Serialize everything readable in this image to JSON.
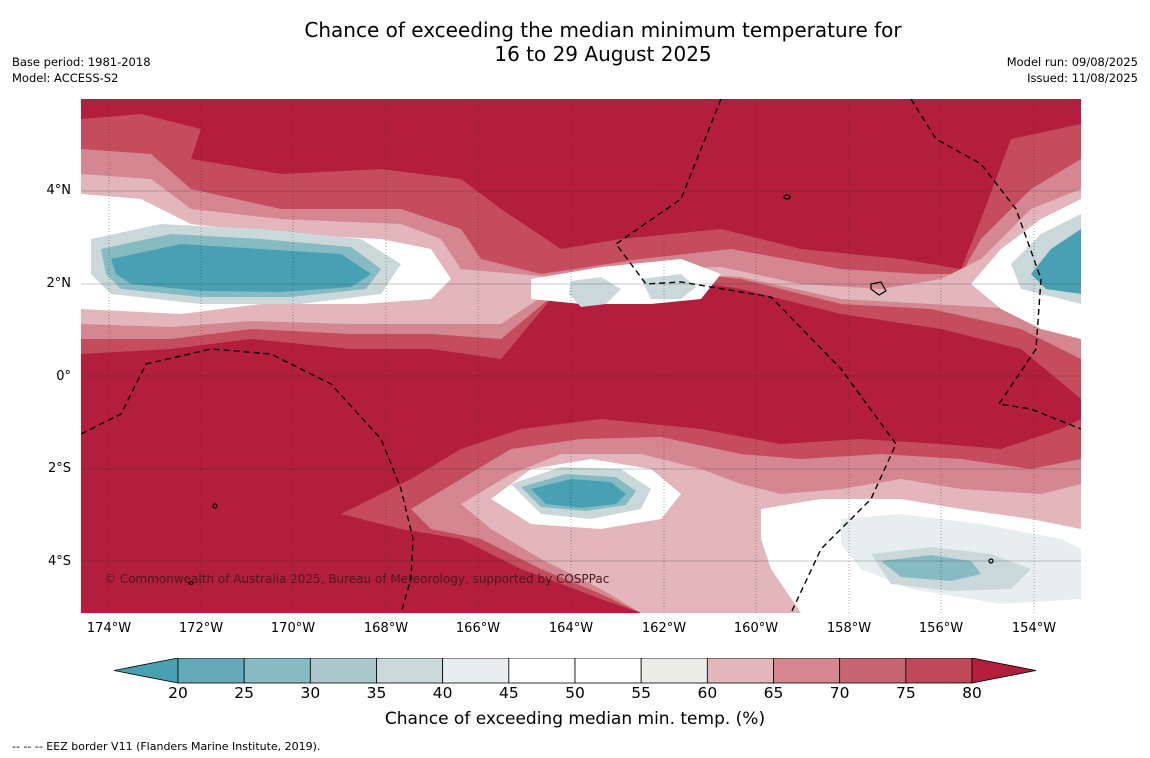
{
  "header": {
    "title_line1": "Chance of exceeding the median minimum temperature for",
    "title_line2": "16 to 29 August 2025",
    "base_period": "Base period: 1981-2018",
    "model": "Model: ACCESS-S2",
    "model_run": "Model run: 09/08/2025",
    "issued": "Issued: 11/08/2025"
  },
  "map": {
    "lat_labels": [
      "4°N",
      "2°N",
      "0°",
      "2°S",
      "4°S"
    ],
    "lon_labels": [
      "174°W",
      "172°W",
      "170°W",
      "168°W",
      "166°W",
      "164°W",
      "162°W",
      "160°W",
      "158°W",
      "156°W",
      "154°W"
    ],
    "copyright": "© Commonwealth of Australia 2025, Bureau of Meteorology, supported by COSPPac",
    "colors": {
      "very_high": "#b21e3b",
      "high": "#c44c5c",
      "mid_high": "#d48790",
      "slightly_high": "#e2b6bb",
      "neutral": "#ffffff",
      "slightly_low": "#e8eef0",
      "mid_low": "#cbd8da",
      "low": "#86bbc4",
      "very_low": "#47a1b3"
    }
  },
  "colorbar": {
    "ticks": [
      "20",
      "25",
      "30",
      "35",
      "40",
      "45",
      "50",
      "55",
      "60",
      "65",
      "70",
      "75",
      "80"
    ],
    "segment_colors": [
      "#65a9b8",
      "#86bbc4",
      "#abc7cc",
      "#cbd8da",
      "#e8eef0",
      "#ffffff",
      "#ffffff",
      "#ececea",
      "#e2b6bb",
      "#d48790",
      "#c56670",
      "#bf4957"
    ],
    "low_arrow_color": "#47a1b3",
    "high_arrow_color": "#b21e3b",
    "title": "Chance of exceeding median min. temp. (%)"
  },
  "footer": {
    "eez_note": "--  --  -- EEZ border V11 (Flanders Marine Institute, 2019)."
  }
}
